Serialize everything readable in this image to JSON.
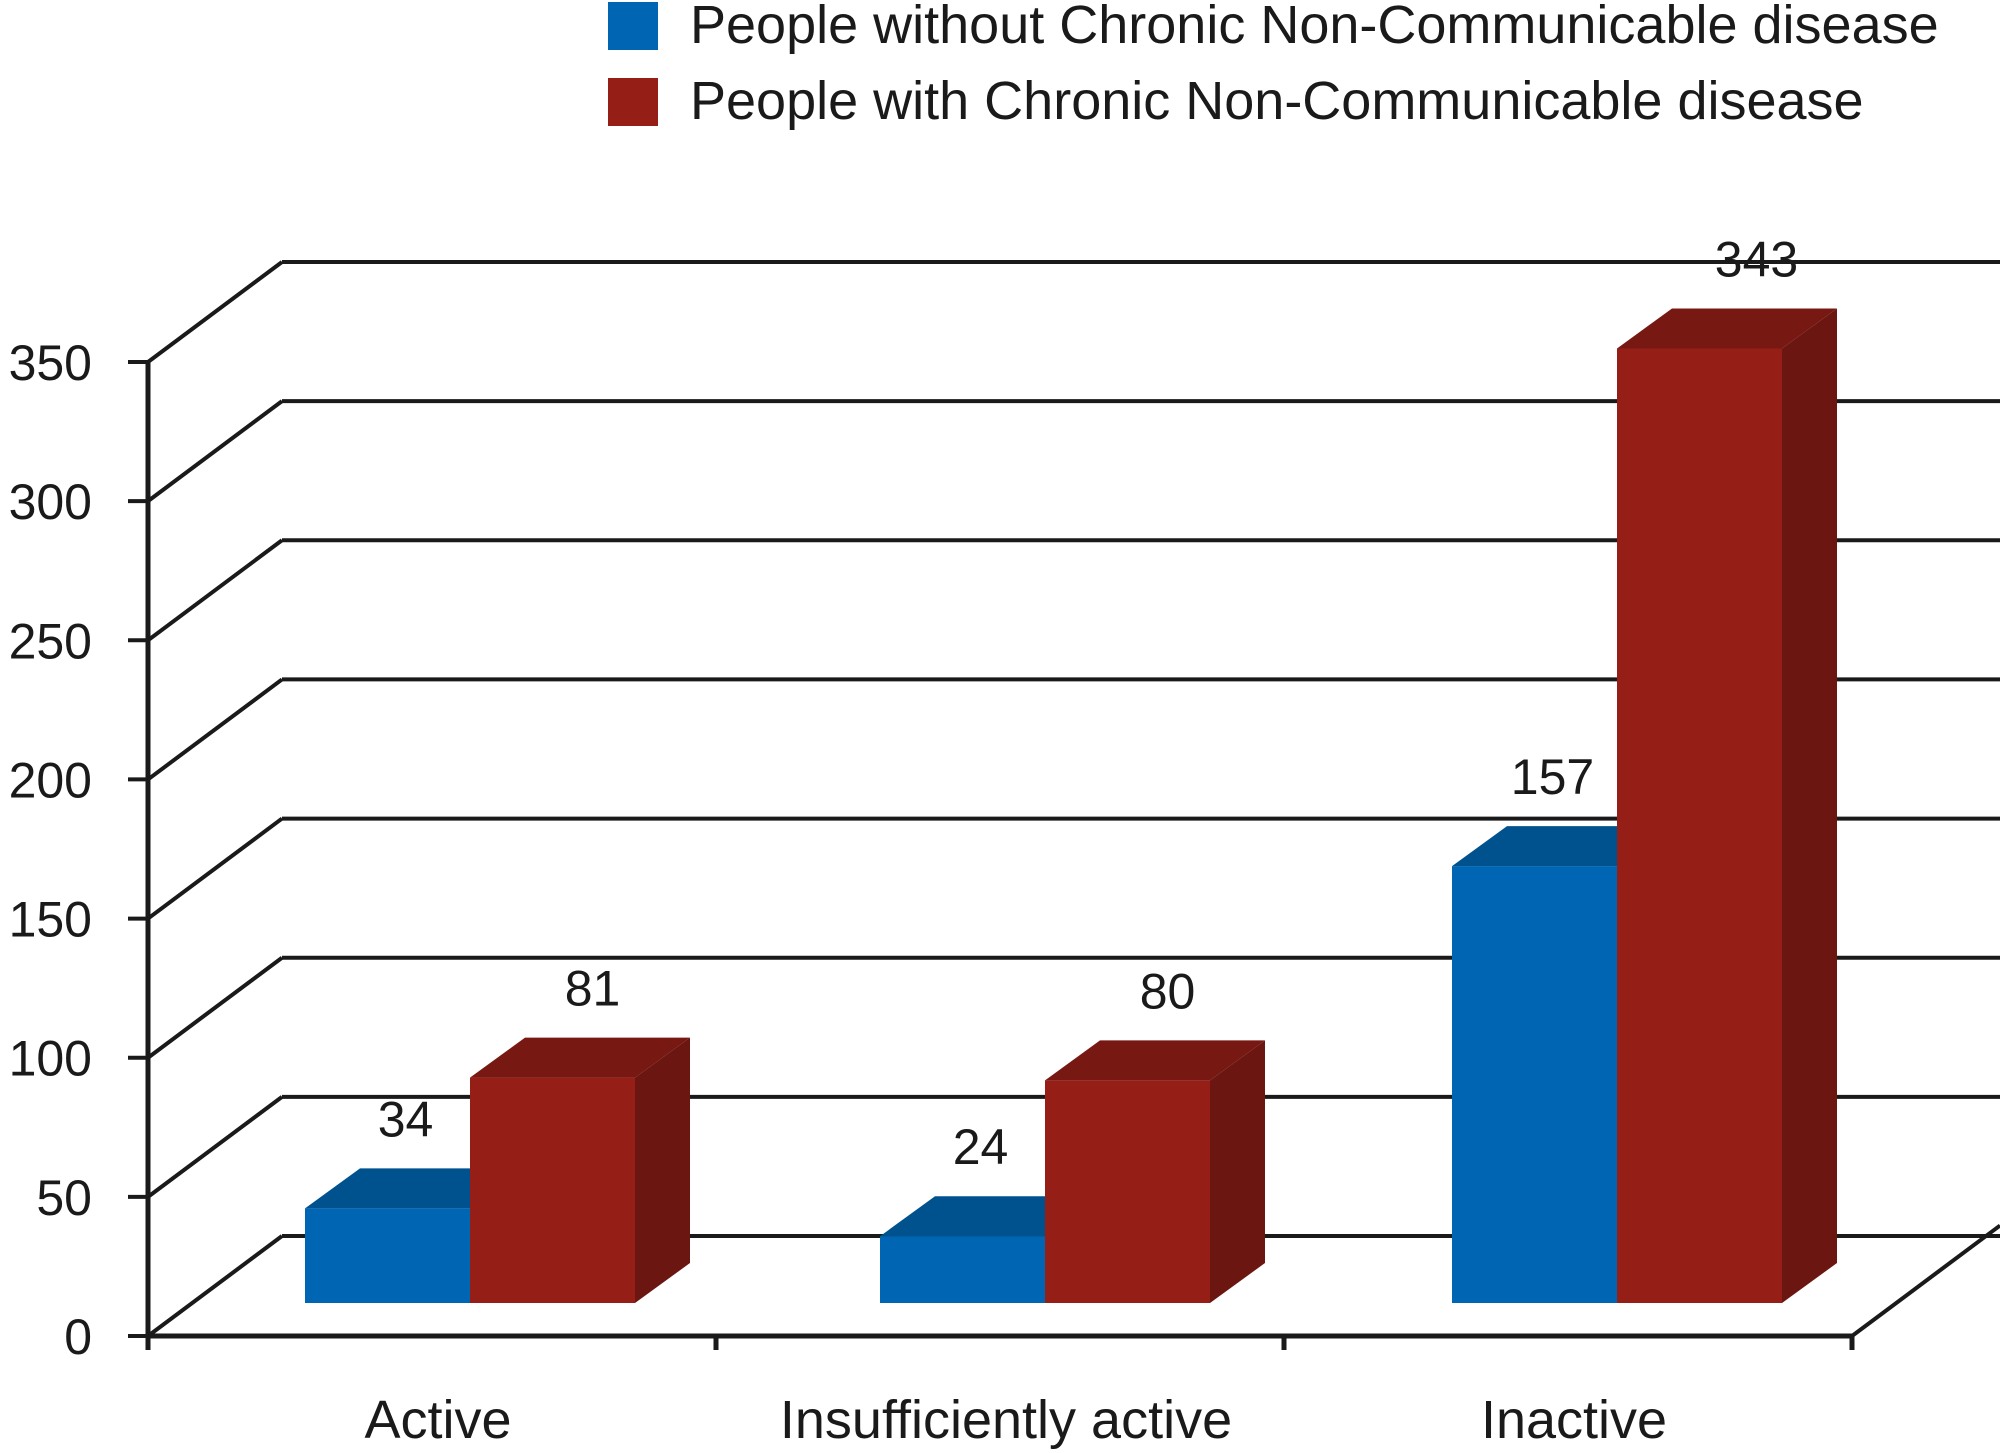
{
  "chart_data": {
    "type": "bar",
    "categories": [
      "Active",
      "Insufficiently active",
      "Inactive"
    ],
    "series": [
      {
        "name": "People without Chronic Non-Communicable disease",
        "values": [
          34,
          24,
          157
        ],
        "labels": [
          "34",
          "24",
          "157"
        ],
        "color": "#0066b3"
      },
      {
        "name": "People with Chronic Non-Communicable disease",
        "values": [
          81,
          80,
          343
        ],
        "labels": [
          "81",
          "80",
          "343"
        ],
        "color": "#951f16"
      }
    ],
    "yticks": [
      {
        "value": 0,
        "label": "0"
      },
      {
        "value": 50,
        "label": "50"
      },
      {
        "value": 100,
        "label": "100"
      },
      {
        "value": 150,
        "label": "150"
      },
      {
        "value": 200,
        "label": "200"
      },
      {
        "value": 250,
        "label": "250"
      },
      {
        "value": 300,
        "label": "300"
      },
      {
        "value": 350,
        "label": "350"
      }
    ],
    "ylim": [
      0,
      350
    ],
    "grid": true,
    "legend": "top-right",
    "style": "3d-clustered-column"
  }
}
